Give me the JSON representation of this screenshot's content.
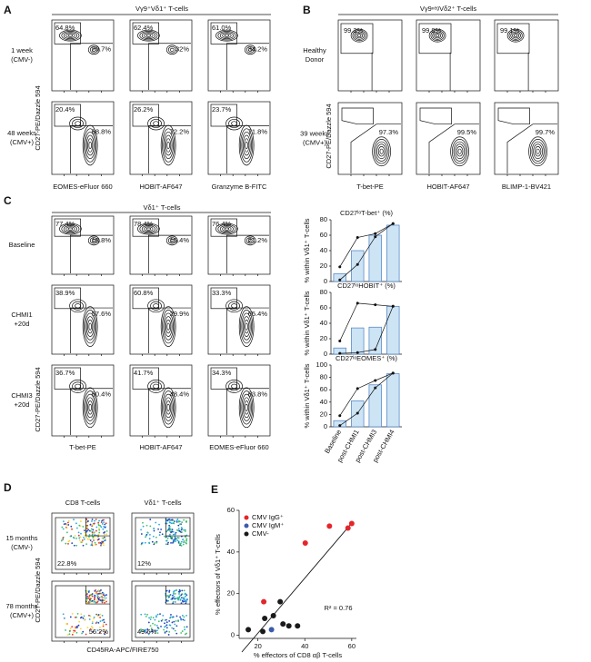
{
  "panels": [
    {
      "letter": "A",
      "title": "Vγ9⁺Vδ1⁺ T-cells",
      "rows": [
        [
          "1 week",
          "(CMV-)"
        ],
        [
          "48 weeks",
          "(CMV+)"
        ]
      ],
      "x_labels": [
        "EOMES-eFluor 660",
        "HOBIT-AF647",
        "Granzyme B-FITC"
      ],
      "y_label": "CD27-PE/Dazzle 594",
      "gates": [
        [
          [
            "64.8%",
            "29.7%"
          ],
          [
            "62.4%",
            "32%"
          ],
          [
            "61.0%",
            "34.2%"
          ]
        ],
        [
          [
            "20.4%",
            "68.8%"
          ],
          [
            "26.2%",
            "72.2%"
          ],
          [
            "23.7%",
            "71.8%"
          ]
        ]
      ]
    },
    {
      "letter": "B",
      "title": "Vγ9ⁿᵉᵍVδ2⁺ T-cells",
      "rows": [
        [
          "Healthy",
          "Donor"
        ],
        [
          "39 weeks",
          "(CMV+)"
        ]
      ],
      "x_labels": [
        "T-bet-PE",
        "HOBIT-AF647",
        "BLIMP-1-BV421"
      ],
      "y_label": "CD27-PE/Dazzle 594",
      "gates": [
        [
          [
            "99.3%"
          ],
          [
            "99.8%"
          ],
          [
            "99.1%"
          ]
        ],
        [
          [
            "97.3%"
          ],
          [
            "99.5%"
          ],
          [
            "99.7%"
          ]
        ]
      ]
    },
    {
      "letter": "C",
      "title": "Vδ1⁺ T-cells",
      "rows": [
        [
          "Baseline"
        ],
        [
          "CHMI1",
          "+20d"
        ],
        [
          "CHMI3",
          "+20d"
        ]
      ],
      "x_labels": [
        "T-bet-PE",
        "HOBIT-AF647",
        "EOMES-eFluor 660"
      ],
      "y_label": "CD27-PE/Dazzle 594",
      "gates": [
        [
          [
            "77.4%",
            "18.8%"
          ],
          [
            "78.4%",
            "15.4%"
          ],
          [
            "76.4%",
            "21.2%"
          ]
        ],
        [
          [
            "38.9%",
            "57.6%"
          ],
          [
            "60.8%",
            "29.9%"
          ],
          [
            "33.3%",
            "65.4%"
          ]
        ],
        [
          [
            "36.7%",
            "60.4%"
          ],
          [
            "41.7%",
            "48.4%"
          ],
          [
            "34.3%",
            "63.8%"
          ]
        ]
      ]
    },
    {
      "letter": "D",
      "col_titles": [
        "CD8 T-cells",
        "Vδ1⁺ T-cells"
      ],
      "rows": [
        [
          "15 months",
          "(CMV-)"
        ],
        [
          "78 months",
          "(CMV+)"
        ]
      ],
      "x_labels": [
        "CD45RA-APC/FIRE750"
      ],
      "y_label": "CD27-PE/Dazzle 594",
      "gates": [
        [
          [
            "22.8%"
          ],
          [
            "12%"
          ]
        ],
        [
          [
            "56.2%"
          ],
          [
            "49.6%"
          ]
        ]
      ]
    }
  ],
  "chart_data": [
    {
      "type": "bar",
      "title": "CD27ˡᵒT-bet⁺ (%)",
      "y_label": "% within Vδ1⁺ T-cells",
      "categories": [
        null,
        null,
        null,
        null
      ],
      "values": [
        10,
        40,
        60,
        73
      ],
      "points": [
        [
          19,
          57,
          62,
          75
        ],
        [
          2,
          22,
          58,
          75
        ]
      ],
      "color": "#cde4f5",
      "ylim": [
        0,
        80
      ],
      "yticks": [
        0,
        20,
        40,
        60,
        80
      ]
    },
    {
      "type": "bar",
      "title": "CD27ˡᵒHOBIT⁺ (%)",
      "y_label": "% within Vδ1⁺ T-cells",
      "categories": [
        null,
        null,
        null,
        null
      ],
      "values": [
        8,
        34,
        35,
        62
      ],
      "points": [
        [
          17,
          66,
          64,
          62
        ],
        [
          1,
          2,
          6,
          62
        ]
      ],
      "color": "#cde4f5",
      "ylim": [
        0,
        80
      ],
      "yticks": [
        0,
        20,
        40,
        60,
        80
      ]
    },
    {
      "type": "bar",
      "title": "CD27ˡᵒEOMES⁺ (%)",
      "y_label": "% within Vδ1⁺ T-cells",
      "categories": [
        "Baseline",
        "post-CHMI1",
        "post-CHMI3",
        "post-CHMI4"
      ],
      "values": [
        10,
        42,
        68,
        86
      ],
      "points": [
        [
          18,
          62,
          75,
          87
        ],
        [
          2,
          22,
          63,
          87
        ]
      ],
      "color": "#cde4f5",
      "ylim": [
        0,
        100
      ],
      "yticks": [
        0,
        20,
        40,
        60,
        80,
        100
      ]
    },
    {
      "type": "scatter",
      "panel_label": "E",
      "x_label": "% effectors of CD8 αβ T-cells",
      "y_label": "% effectors of Vδ1⁺ T-cells",
      "annotation": "R² = 0.76",
      "legend": "top-left",
      "xlim": [
        12,
        62
      ],
      "ylim": [
        -1.5,
        60
      ],
      "xticks": [
        20,
        40,
        60
      ],
      "yticks": [
        0,
        20,
        40,
        60
      ],
      "series": [
        {
          "name": "CMV IgG⁺",
          "color": "#e3262b",
          "x": [
            22.5,
            40.2,
            50.5,
            58.4,
            60
          ],
          "values": [
            16.1,
            44.3,
            52.4,
            51.5,
            53.7
          ]
        },
        {
          "name": "CMV IgM⁺",
          "color": "#3b5bab",
          "x": [
            25.8
          ],
          "values": [
            2.7
          ]
        },
        {
          "name": "CMV-",
          "color": "#1a1a1a",
          "x": [
            15.9,
            22.1,
            22.9,
            26.6,
            29.5,
            30.7,
            33.2,
            36.9
          ],
          "values": [
            2.7,
            1.8,
            8.1,
            9.4,
            16.1,
            5.4,
            4.5,
            4.5
          ]
        }
      ]
    }
  ]
}
